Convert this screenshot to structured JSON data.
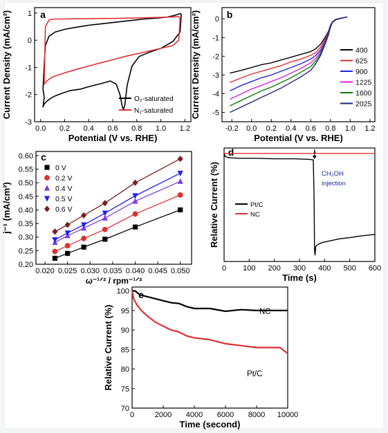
{
  "figure": {
    "background": "#ffffff",
    "page_background": "#f4f5f7"
  },
  "chart_data": [
    {
      "id": "a",
      "type": "line",
      "panel_label": "a",
      "xlabel": "Potential (V vs. RHE)",
      "ylabel": "Current Density (mA/cm²)",
      "xlim": [
        -0.05,
        1.25
      ],
      "ylim": [
        -3,
        1.2
      ],
      "xticks": [
        0.0,
        0.2,
        0.4,
        0.6,
        0.8,
        1.0,
        1.2
      ],
      "yticks": [
        -3,
        -2,
        -1,
        0,
        1
      ],
      "legend_position": "right",
      "series": [
        {
          "name": "O₂-saturated",
          "color": "#000000",
          "x": [
            0.03,
            0.02,
            0.03,
            0.05,
            0.08,
            0.12,
            0.18,
            0.25,
            0.33,
            0.41,
            0.5,
            0.58,
            0.63,
            0.66,
            0.68,
            0.69,
            0.7,
            0.72,
            0.76,
            0.82,
            0.9,
            1.0,
            1.1,
            1.16,
            1.17,
            1.16,
            1.12,
            1.05,
            0.98,
            0.92,
            0.86,
            0.8,
            0.7,
            0.6,
            0.5,
            0.4,
            0.3,
            0.2,
            0.12,
            0.07,
            0.04,
            0.03,
            0.02,
            0.03
          ],
          "y": [
            -2.1,
            -2.45,
            -2.35,
            -2.25,
            -2.15,
            -2.05,
            -1.95,
            -1.85,
            -1.8,
            -1.7,
            -1.6,
            -1.5,
            -1.62,
            -2.0,
            -2.45,
            -2.55,
            -2.4,
            -1.65,
            -0.95,
            -0.6,
            -0.45,
            -0.3,
            -0.05,
            0.3,
            0.95,
            0.98,
            0.92,
            0.85,
            0.82,
            0.8,
            0.78,
            0.75,
            0.7,
            0.65,
            0.6,
            0.55,
            0.48,
            0.4,
            0.3,
            0.15,
            -0.2,
            -0.9,
            -1.8,
            -2.1
          ]
        },
        {
          "name": "N₂-saturated",
          "color": "#e03030",
          "x": [
            0.03,
            0.03,
            0.05,
            0.1,
            0.2,
            0.3,
            0.4,
            0.5,
            0.6,
            0.7,
            0.8,
            0.9,
            1.0,
            1.1,
            1.15,
            1.16,
            1.15,
            1.1,
            1.0,
            0.9,
            0.8,
            0.7,
            0.6,
            0.5,
            0.4,
            0.3,
            0.2,
            0.12,
            0.07,
            0.04,
            0.03
          ],
          "y": [
            -1.6,
            -1.62,
            -1.5,
            -1.35,
            -1.2,
            -1.07,
            -0.95,
            -0.83,
            -0.72,
            -0.6,
            -0.5,
            -0.4,
            -0.3,
            -0.2,
            0.0,
            0.8,
            0.87,
            0.86,
            0.84,
            0.83,
            0.82,
            0.81,
            0.8,
            0.8,
            0.79,
            0.79,
            0.78,
            0.78,
            0.75,
            0.5,
            -1.6
          ]
        }
      ]
    },
    {
      "id": "b",
      "type": "line",
      "panel_label": "b",
      "xlabel": "Potential (V vs. RHE)",
      "ylabel": "Current Density (mA/cm²)",
      "xlim": [
        -0.3,
        1.25
      ],
      "ylim": [
        -5.5,
        0.6
      ],
      "xticks": [
        -0.2,
        0.0,
        0.2,
        0.4,
        0.6,
        0.8,
        1.0,
        1.2
      ],
      "yticks": [
        -5,
        -4,
        -3,
        -2,
        -1,
        0
      ],
      "legend_position": "right",
      "x": [
        -0.22,
        -0.1,
        0.0,
        0.1,
        0.2,
        0.3,
        0.4,
        0.5,
        0.6,
        0.65,
        0.7,
        0.75,
        0.78,
        0.8,
        0.82,
        0.85,
        0.9,
        0.95,
        0.97
      ],
      "series": [
        {
          "name": "400",
          "color": "#000000",
          "y": [
            -2.9,
            -2.75,
            -2.6,
            -2.45,
            -2.35,
            -2.2,
            -2.05,
            -1.9,
            -1.75,
            -1.6,
            -1.35,
            -0.95,
            -0.65,
            -0.35,
            -0.15,
            -0.03,
            0.03,
            0.08,
            0.1
          ]
        },
        {
          "name": "625",
          "color": "#e03030",
          "y": [
            -3.4,
            -3.15,
            -2.95,
            -2.8,
            -2.65,
            -2.5,
            -2.3,
            -2.15,
            -1.95,
            -1.8,
            -1.5,
            -1.05,
            -0.7,
            -0.38,
            -0.16,
            -0.04,
            0.02,
            0.08,
            0.1
          ]
        },
        {
          "name": "900",
          "color": "#2020dd",
          "y": [
            -3.85,
            -3.55,
            -3.35,
            -3.15,
            -3.0,
            -2.8,
            -2.6,
            -2.4,
            -2.15,
            -1.95,
            -1.65,
            -1.15,
            -0.75,
            -0.4,
            -0.17,
            -0.05,
            0.02,
            0.08,
            0.1
          ]
        },
        {
          "name": "1225",
          "color": "#dd22dd",
          "y": [
            -4.3,
            -4.0,
            -3.75,
            -3.55,
            -3.35,
            -3.15,
            -2.9,
            -2.65,
            -2.35,
            -2.1,
            -1.75,
            -1.2,
            -0.8,
            -0.42,
            -0.18,
            -0.05,
            0.02,
            0.08,
            0.1
          ]
        },
        {
          "name": "1600",
          "color": "#0b7a0b",
          "y": [
            -4.65,
            -4.35,
            -4.1,
            -3.85,
            -3.65,
            -3.4,
            -3.15,
            -2.85,
            -2.55,
            -2.25,
            -1.85,
            -1.25,
            -0.82,
            -0.43,
            -0.18,
            -0.05,
            0.02,
            0.08,
            0.1
          ]
        },
        {
          "name": "2025",
          "color": "#1a237e",
          "y": [
            -5.0,
            -4.7,
            -4.45,
            -4.2,
            -3.95,
            -3.7,
            -3.4,
            -3.1,
            -2.75,
            -2.4,
            -1.95,
            -1.3,
            -0.85,
            -0.45,
            -0.19,
            -0.05,
            0.02,
            0.08,
            0.1
          ]
        }
      ]
    },
    {
      "id": "c",
      "type": "line",
      "panel_label": "c",
      "xlabel": "ω⁻¹ᐟ² / rpm⁻¹ᐟ²",
      "ylabel": "j⁻¹ (mA/cm²)",
      "xlim": [
        0.018,
        0.0525
      ],
      "ylim": [
        0.2,
        0.615
      ],
      "xticks": [
        0.02,
        0.025,
        0.03,
        0.035,
        0.04,
        0.045,
        0.05
      ],
      "yticks": [
        0.2,
        0.25,
        0.3,
        0.35,
        0.4,
        0.45,
        0.5,
        0.55,
        0.6
      ],
      "legend_position": "top-left",
      "x": [
        0.0222,
        0.025,
        0.0286,
        0.0333,
        0.04,
        0.05
      ],
      "series": [
        {
          "name": "0 V",
          "color": "#000000",
          "marker": "square",
          "y": [
            0.222,
            0.24,
            0.263,
            0.292,
            0.337,
            0.4
          ]
        },
        {
          "name": "0.2 V",
          "color": "#e03030",
          "marker": "circle",
          "y": [
            0.247,
            0.268,
            0.295,
            0.328,
            0.385,
            0.455
          ]
        },
        {
          "name": "0.4 V",
          "color": "#7b3fe0",
          "marker": "triangle-up",
          "y": [
            0.28,
            0.305,
            0.333,
            0.37,
            0.432,
            0.505
          ]
        },
        {
          "name": "0.5 V",
          "color": "#2020ee",
          "marker": "triangle-down",
          "y": [
            0.29,
            0.315,
            0.345,
            0.388,
            0.452,
            0.535
          ]
        },
        {
          "name": "0.6 V",
          "color": "#7a2020",
          "marker": "diamond",
          "y": [
            0.32,
            0.345,
            0.38,
            0.425,
            0.5,
            0.588
          ]
        }
      ]
    },
    {
      "id": "d",
      "type": "line",
      "panel_label": "d",
      "xlabel": "Time (s)",
      "ylabel": "Relative Current (%)",
      "xlim": [
        0,
        600
      ],
      "ylim": [
        0,
        105
      ],
      "xticks": [
        0,
        100,
        200,
        300,
        400,
        500,
        600
      ],
      "yticks": [],
      "legend_position": "middle-left",
      "annotation_line1": "CH₃OH",
      "annotation_line2": "injection",
      "annotation_color": "#1a2aa0",
      "series": [
        {
          "name": "Pt/C",
          "color": "#000000",
          "x": [
            0,
            5,
            20,
            60,
            120,
            200,
            280,
            340,
            355,
            358,
            360,
            362,
            365,
            375,
            390,
            420,
            460,
            500,
            540,
            580,
            600
          ],
          "y": [
            100,
            97,
            96,
            95.5,
            95.5,
            95,
            95,
            94.5,
            94,
            60,
            10,
            6,
            14,
            16,
            17.5,
            19,
            21,
            22,
            23.5,
            24.5,
            25
          ]
        },
        {
          "name": "NC",
          "color": "#e03030",
          "x": [
            0,
            50,
            100,
            150,
            200,
            250,
            300,
            350,
            358,
            360,
            362,
            365,
            400,
            450,
            500,
            550,
            600
          ],
          "y": [
            100,
            100,
            100,
            100,
            100,
            100,
            100,
            100,
            100,
            102,
            101,
            100,
            100,
            100,
            100,
            100,
            100
          ]
        }
      ]
    },
    {
      "id": "e",
      "type": "line",
      "panel_label": "e",
      "xlabel": "Time (second)",
      "ylabel": "Relative Current (%)",
      "xlim": [
        0,
        10000
      ],
      "ylim": [
        70,
        101
      ],
      "xticks": [
        0,
        2000,
        4000,
        6000,
        8000,
        10000
      ],
      "yticks": [
        70,
        75,
        80,
        85,
        90,
        95,
        100
      ],
      "series": [
        {
          "name": "NC",
          "color": "#000000",
          "x": [
            0,
            200,
            500,
            1000,
            1500,
            2000,
            2500,
            3000,
            3500,
            4000,
            5000,
            6000,
            7000,
            8000,
            9000,
            10000
          ],
          "y": [
            100,
            100,
            99,
            98.5,
            98,
            97.5,
            97,
            96.8,
            96,
            95.5,
            95.5,
            94.8,
            95.2,
            95,
            95,
            95
          ]
        },
        {
          "name": "Pt/C",
          "color": "#e03030",
          "x": [
            0,
            100,
            300,
            600,
            1000,
            1500,
            2000,
            2500,
            3000,
            3500,
            4000,
            5000,
            6000,
            7000,
            8000,
            9000,
            9500,
            10000
          ],
          "y": [
            100,
            98,
            96.5,
            95,
            93.5,
            92,
            91,
            90,
            89.5,
            88.5,
            88,
            87.5,
            86.5,
            86,
            85.5,
            85.5,
            85.5,
            84
          ]
        }
      ]
    }
  ]
}
